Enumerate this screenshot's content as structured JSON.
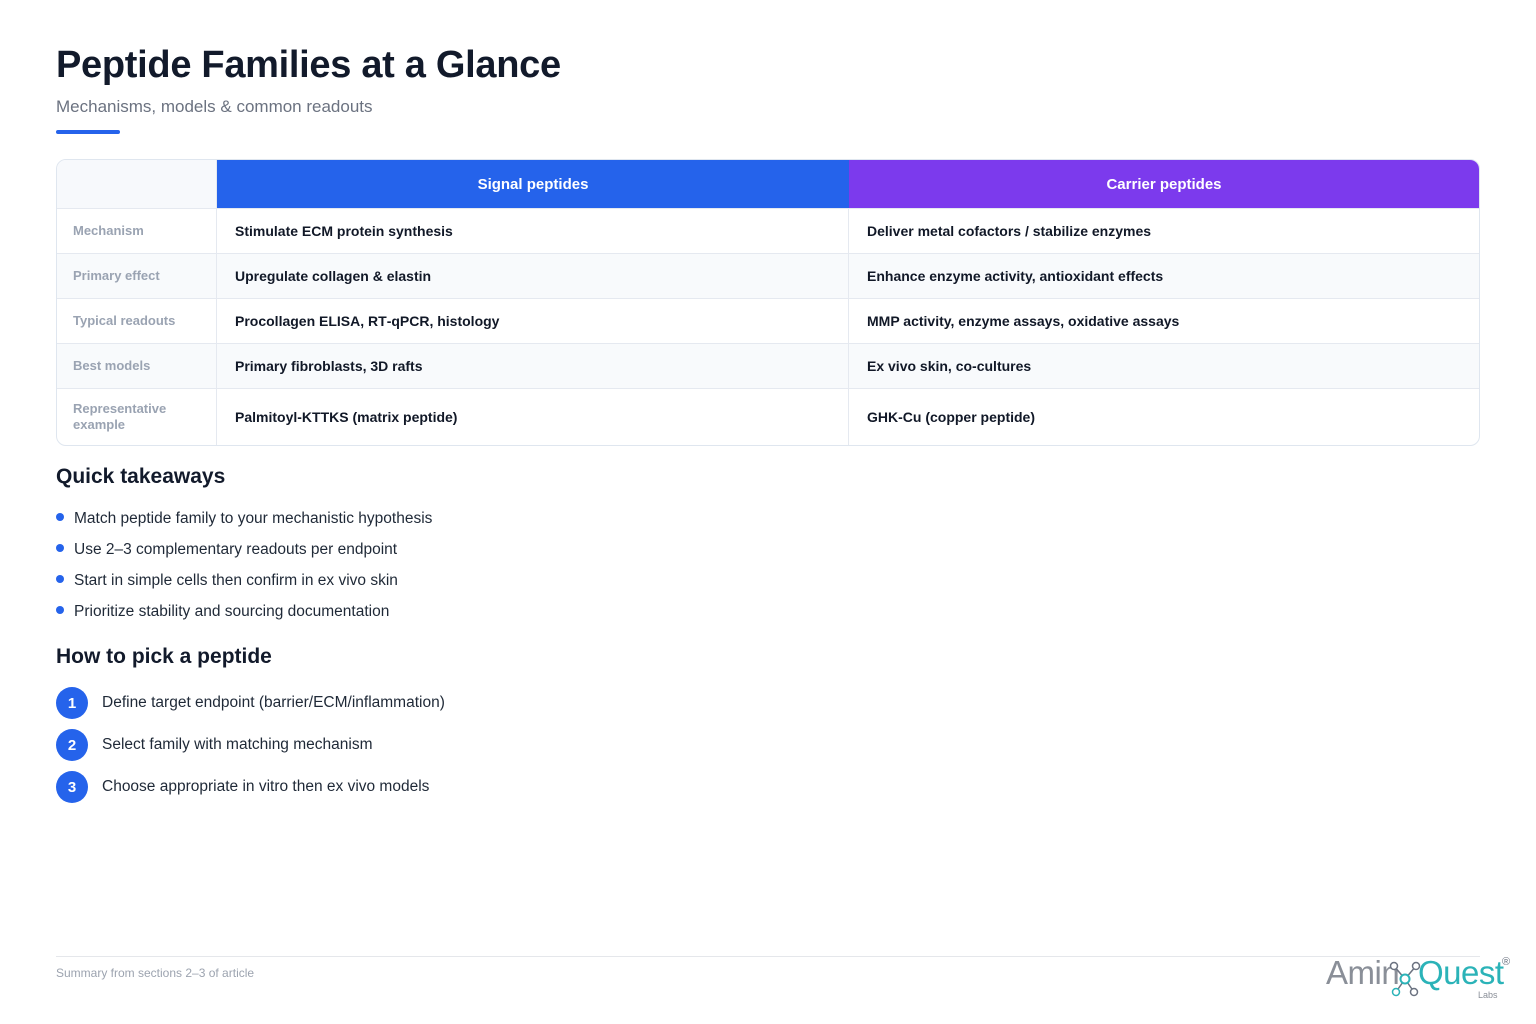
{
  "header": {
    "title": "Peptide Families at a Glance",
    "subtitle": "Mechanisms, models & common readouts"
  },
  "table": {
    "columns": [
      "Signal peptides",
      "Carrier peptides"
    ],
    "rows": [
      {
        "label": "Mechanism",
        "signal": "Stimulate ECM protein synthesis",
        "carrier": "Deliver metal cofactors / stabilize enzymes"
      },
      {
        "label": "Primary effect",
        "signal": "Upregulate collagen & elastin",
        "carrier": "Enhance enzyme activity, antioxidant effects"
      },
      {
        "label": "Typical readouts",
        "signal": "Procollagen ELISA, RT‑qPCR, histology",
        "carrier": "MMP activity, enzyme assays, oxidative assays"
      },
      {
        "label": "Best models",
        "signal": "Primary fibroblasts, 3D rafts",
        "carrier": "Ex vivo skin, co‑cultures"
      },
      {
        "label": "Representative example",
        "signal": "Palmitoyl‑KTTKS (matrix peptide)",
        "carrier": "GHK‑Cu (copper peptide)"
      }
    ],
    "colors": {
      "signal": "#2563eb",
      "carrier": "#7c3aed"
    }
  },
  "takeaways": {
    "heading": "Quick takeaways",
    "items": [
      "Match peptide family to your mechanistic hypothesis",
      "Use 2–3 complementary readouts per endpoint",
      "Start in simple cells then confirm in ex vivo skin",
      "Prioritize stability and sourcing documentation"
    ]
  },
  "howto": {
    "heading": "How to pick a peptide",
    "steps": [
      {
        "num": "1",
        "text": "Define target endpoint (barrier/ECM/inflammation)"
      },
      {
        "num": "2",
        "text": "Select family with matching mechanism"
      },
      {
        "num": "3",
        "text": "Choose appropriate in vitro then ex vivo models"
      }
    ]
  },
  "footer": {
    "note": "Summary from sections 2–3 of article",
    "logo": {
      "part1": "Amin",
      "part2": "Quest",
      "sub": "Labs",
      "reg": "®"
    }
  }
}
